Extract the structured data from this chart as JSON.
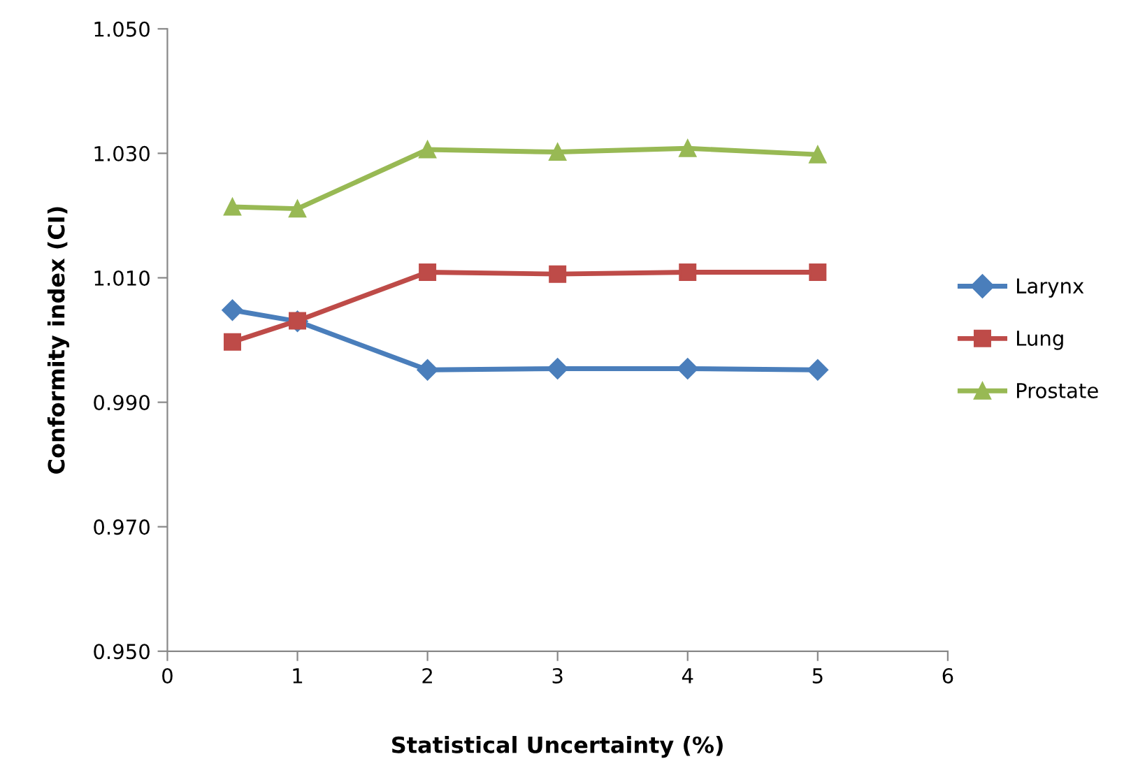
{
  "chart_data": {
    "type": "line",
    "xlabel": "Statistical Uncertainty (%)",
    "ylabel": "Conformity index (CI)",
    "x": [
      0.5,
      1,
      2,
      3,
      4,
      5
    ],
    "series": [
      {
        "name": "Larynx",
        "color": "#4a7ebb",
        "marker": "diamond",
        "values": [
          1.0048,
          1.003,
          0.9952,
          0.9954,
          0.9954,
          0.9952
        ]
      },
      {
        "name": "Lung",
        "color": "#be4b48",
        "marker": "square",
        "values": [
          0.9997,
          1.0031,
          1.0109,
          1.0106,
          1.0109,
          1.0109
        ]
      },
      {
        "name": "Prostate",
        "color": "#98b954",
        "marker": "triangle",
        "values": [
          1.0214,
          1.0211,
          1.0306,
          1.0302,
          1.0308,
          1.0298
        ]
      }
    ],
    "xlim": [
      0,
      6
    ],
    "xticks": [
      0,
      1,
      2,
      3,
      4,
      5,
      6
    ],
    "ylim": [
      0.95,
      1.05
    ],
    "yticks": [
      {
        "value": 0.95,
        "label": "0.950"
      },
      {
        "value": 0.97,
        "label": "0.970"
      },
      {
        "value": 0.99,
        "label": "0.990"
      },
      {
        "value": 1.01,
        "label": "1.010"
      },
      {
        "value": 1.03,
        "label": "1.030"
      },
      {
        "value": 1.05,
        "label": "1.050"
      }
    ],
    "grid": false,
    "legend": "right",
    "line_style": "solid"
  }
}
